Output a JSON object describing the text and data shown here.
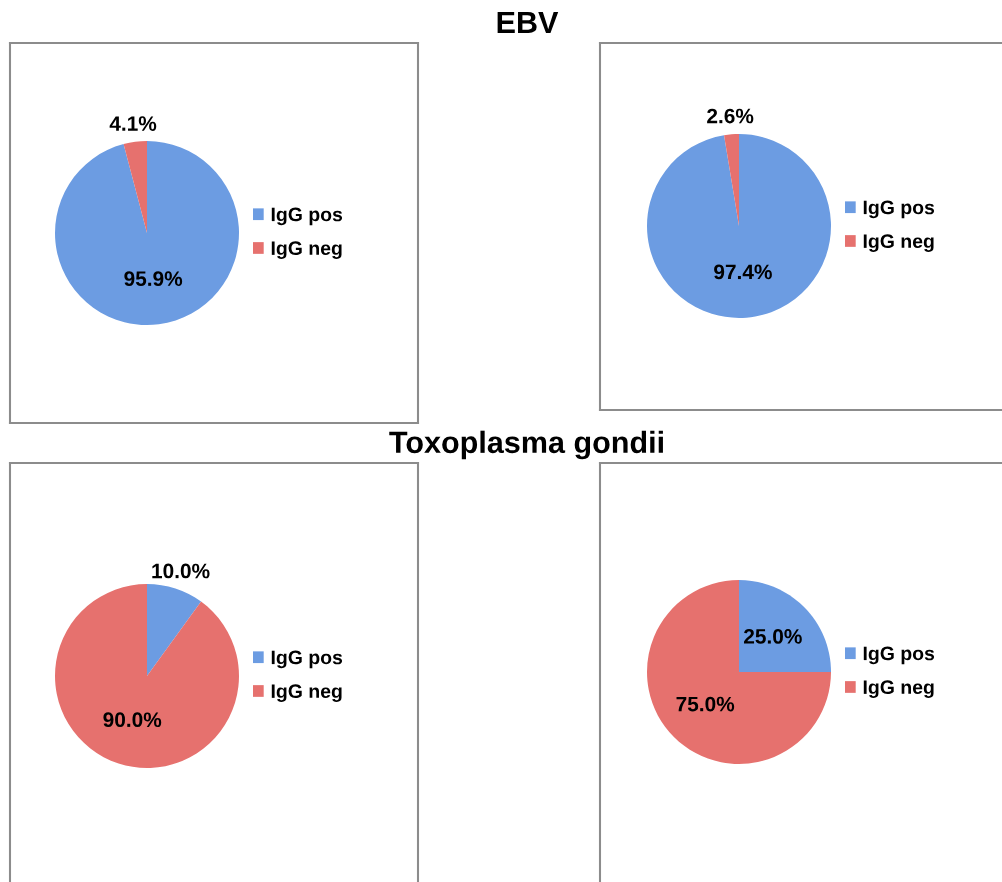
{
  "chart_data": [
    {
      "type": "pie",
      "title": "EBV",
      "categories": [
        "IgG pos",
        "IgG neg"
      ],
      "values": [
        95.9,
        4.1
      ],
      "colors": [
        "#6c9ce2",
        "#e6716e"
      ],
      "value_labels": [
        "95.9%",
        "4.1%"
      ],
      "legend": "right"
    },
    {
      "type": "pie",
      "categories": [
        "IgG pos",
        "IgG neg"
      ],
      "values": [
        97.4,
        2.6
      ],
      "colors": [
        "#6c9ce2",
        "#e6716e"
      ],
      "value_labels": [
        "97.4%",
        "2.6%"
      ],
      "legend": "right"
    },
    {
      "type": "pie",
      "title": "Toxoplasma gondii",
      "categories": [
        "IgG pos",
        "IgG neg"
      ],
      "values": [
        10.0,
        90.0
      ],
      "colors": [
        "#6c9ce2",
        "#e6716e"
      ],
      "value_labels": [
        "10.0%",
        "90.0%"
      ],
      "legend": "right"
    },
    {
      "type": "pie",
      "categories": [
        "IgG pos",
        "IgG neg"
      ],
      "values": [
        25.0,
        75.0
      ],
      "colors": [
        "#6c9ce2",
        "#e6716e"
      ],
      "value_labels": [
        "25.0%",
        "75.0%"
      ],
      "legend": "right"
    }
  ]
}
